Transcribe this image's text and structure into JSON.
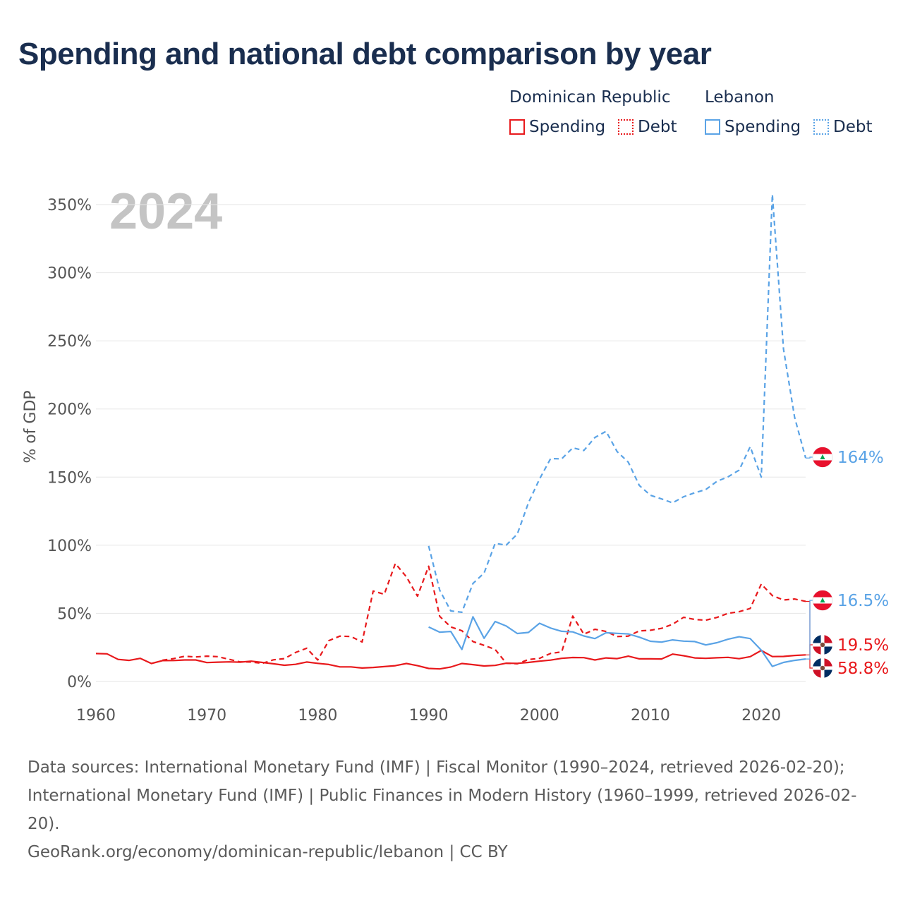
{
  "title": "Spending and national debt comparison by year",
  "legend": {
    "groups": [
      {
        "country": "Dominican Republic",
        "spending_label": "Spending",
        "debt_label": "Debt",
        "color": "#e8191c"
      },
      {
        "country": "Lebanon",
        "spending_label": "Spending",
        "debt_label": "Debt",
        "color": "#5aa3e6"
      }
    ]
  },
  "chart_data": {
    "type": "line",
    "title": "Spending and national debt comparison by year",
    "year_label": "2024",
    "ylabel": "% of GDP",
    "xlabel": "",
    "xlim": [
      1960,
      2024
    ],
    "ylim": [
      0,
      360
    ],
    "x_ticks": [
      "1960",
      "1970",
      "1980",
      "1990",
      "2000",
      "2010",
      "2020"
    ],
    "x_tick_values": [
      1960,
      1970,
      1980,
      1990,
      2000,
      2010,
      2020
    ],
    "y_ticks": [
      "0%",
      "50%",
      "100%",
      "150%",
      "200%",
      "250%",
      "300%",
      "350%"
    ],
    "y_tick_values": [
      0,
      50,
      100,
      150,
      200,
      250,
      300,
      350
    ],
    "grid": true,
    "series": [
      {
        "name": "Dominican Republic Spending",
        "country": "Dominican Republic",
        "metric": "Spending",
        "color": "#e8191c",
        "dash": "solid",
        "end_label": "19.5%",
        "x": [
          1960,
          1961,
          1962,
          1963,
          1964,
          1965,
          1966,
          1967,
          1968,
          1969,
          1970,
          1971,
          1972,
          1973,
          1974,
          1975,
          1976,
          1977,
          1978,
          1979,
          1980,
          1981,
          1982,
          1983,
          1984,
          1985,
          1986,
          1987,
          1988,
          1989,
          1990,
          1991,
          1992,
          1993,
          1994,
          1995,
          1996,
          1997,
          1998,
          1999,
          2000,
          2001,
          2002,
          2003,
          2004,
          2005,
          2006,
          2007,
          2008,
          2009,
          2010,
          2011,
          2012,
          2013,
          2014,
          2015,
          2016,
          2017,
          2018,
          2019,
          2020,
          2021,
          2022,
          2023,
          2024
        ],
        "values": [
          20.5,
          20.3,
          16.2,
          15.5,
          17.0,
          13.2,
          15.3,
          15.4,
          15.8,
          15.8,
          13.9,
          14.2,
          14.4,
          14.2,
          14.9,
          14.0,
          13.0,
          11.9,
          12.6,
          14.3,
          13.3,
          12.5,
          10.7,
          10.7,
          9.9,
          10.3,
          10.9,
          11.6,
          13.2,
          11.6,
          9.6,
          9.2,
          10.6,
          13.2,
          12.4,
          11.4,
          11.8,
          13.4,
          13.3,
          14.0,
          14.9,
          15.7,
          17.0,
          17.6,
          17.5,
          15.8,
          17.3,
          16.8,
          18.6,
          16.6,
          16.6,
          16.5,
          20.1,
          18.9,
          17.3,
          17.0,
          17.4,
          17.7,
          16.7,
          18.2,
          22.8,
          18.3,
          18.4,
          19.1,
          19.5
        ]
      },
      {
        "name": "Dominican Republic Debt",
        "country": "Dominican Republic",
        "metric": "Debt",
        "color": "#e8191c",
        "dash": "dashed",
        "end_label": "58.8%",
        "x": [
          1966,
          1967,
          1968,
          1969,
          1970,
          1971,
          1972,
          1973,
          1974,
          1975,
          1976,
          1977,
          1978,
          1979,
          1980,
          1981,
          1982,
          1983,
          1984,
          1985,
          1986,
          1987,
          1988,
          1989,
          1990,
          1991,
          1992,
          1993,
          1994,
          1995,
          1996,
          1997,
          1998,
          1999,
          2000,
          2001,
          2002,
          2003,
          2004,
          2005,
          2006,
          2007,
          2008,
          2009,
          2010,
          2011,
          2012,
          2013,
          2014,
          2015,
          2016,
          2017,
          2018,
          2019,
          2020,
          2021,
          2022,
          2023,
          2024
        ],
        "values": [
          15.6,
          16.8,
          18.5,
          18.0,
          18.6,
          18.2,
          16.3,
          14.4,
          14.3,
          13.3,
          15.9,
          16.8,
          21.3,
          24.4,
          15.8,
          30.0,
          33.3,
          33.0,
          29.0,
          66.4,
          64.0,
          86.6,
          76.8,
          62.6,
          84.6,
          47.8,
          40.0,
          37.3,
          29.3,
          26.5,
          23.5,
          13.4,
          13.0,
          16.1,
          17.0,
          20.6,
          21.7,
          48.0,
          34.7,
          38.3,
          36.7,
          33.0,
          33.3,
          37.1,
          37.6,
          39.0,
          42.0,
          47.1,
          45.5,
          45.0,
          47.0,
          50.0,
          51.2,
          53.6,
          71.5,
          63.0,
          59.8,
          60.5,
          58.8
        ]
      },
      {
        "name": "Lebanon Spending",
        "country": "Lebanon",
        "metric": "Spending",
        "color": "#5aa3e6",
        "dash": "solid",
        "end_label": "16.5%",
        "x": [
          1990,
          1991,
          1992,
          1993,
          1994,
          1995,
          1996,
          1997,
          1998,
          1999,
          2000,
          2001,
          2002,
          2003,
          2004,
          2005,
          2006,
          2007,
          2008,
          2009,
          2010,
          2011,
          2012,
          2013,
          2014,
          2015,
          2016,
          2017,
          2018,
          2019,
          2020,
          2021,
          2022,
          2023,
          2024
        ],
        "values": [
          40.0,
          36.2,
          36.7,
          23.5,
          47.5,
          31.7,
          44.0,
          40.7,
          35.2,
          36.0,
          42.7,
          39.2,
          36.8,
          36.4,
          33.4,
          31.5,
          35.8,
          35.3,
          34.9,
          32.5,
          29.5,
          28.9,
          30.5,
          29.6,
          29.3,
          26.8,
          28.5,
          31.0,
          32.8,
          31.5,
          23.0,
          11.1,
          14.0,
          15.5,
          16.5
        ]
      },
      {
        "name": "Lebanon Debt",
        "country": "Lebanon",
        "metric": "Debt",
        "color": "#5aa3e6",
        "dash": "dashed",
        "end_label": "164%",
        "x": [
          1990,
          1991,
          1992,
          1993,
          1994,
          1995,
          1996,
          1997,
          1998,
          1999,
          2000,
          2001,
          2002,
          2003,
          2004,
          2005,
          2006,
          2007,
          2008,
          2009,
          2010,
          2011,
          2012,
          2013,
          2014,
          2015,
          2016,
          2017,
          2018,
          2019,
          2020,
          2021,
          2022,
          2023,
          2024
        ],
        "values": [
          99.5,
          67.0,
          51.8,
          50.8,
          71.9,
          79.6,
          101.4,
          100.1,
          108.2,
          131.1,
          148.6,
          163.6,
          163.4,
          171.5,
          169.5,
          179.1,
          183.6,
          168.7,
          161.0,
          143.9,
          136.7,
          134.0,
          131.1,
          135.6,
          138.5,
          140.9,
          146.9,
          150.2,
          155.1,
          172.3,
          150.0,
          357.5,
          244.0,
          194.0,
          164.0
        ]
      }
    ]
  },
  "footer": {
    "line1": "Data sources: International Monetary Fund (IMF) | Fiscal Monitor (1990–2024, retrieved 2026-02-20);",
    "line2": "International Monetary Fund (IMF) | Public Finances in Modern History (1960–1999, retrieved 2026-02-",
    "line3": "20).",
    "line4": "GeoRank.org/economy/dominican-republic/lebanon | CC BY"
  }
}
